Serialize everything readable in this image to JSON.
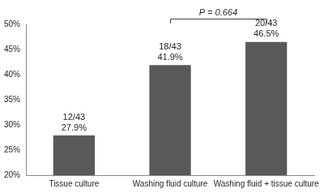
{
  "chart_data": {
    "type": "bar",
    "categories": [
      "Tissue culture",
      "Washing fluid culture",
      "Washing fluid + tissue culture"
    ],
    "values": [
      27.9,
      41.9,
      46.5
    ],
    "value_labels": [
      [
        "12/43",
        "27.9%"
      ],
      [
        "18/43",
        "41.9%"
      ],
      [
        "20/43",
        "46.5%"
      ]
    ],
    "data_labels": true,
    "color": "#595959",
    "ylim": [
      20,
      50
    ],
    "yticks": [
      {
        "value": 20,
        "label": "20%"
      },
      {
        "value": 25,
        "label": "25%"
      },
      {
        "value": 30,
        "label": "30%"
      },
      {
        "value": 35,
        "label": "35%"
      },
      {
        "value": 40,
        "label": "40%"
      },
      {
        "value": 45,
        "label": "45%"
      },
      {
        "value": 50,
        "label": "50%"
      }
    ],
    "grid": false,
    "legend": false,
    "annotations": [
      {
        "text": "P = 0.664",
        "between": [
          "Washing fluid culture",
          "Washing fluid + tissue culture"
        ]
      }
    ]
  }
}
